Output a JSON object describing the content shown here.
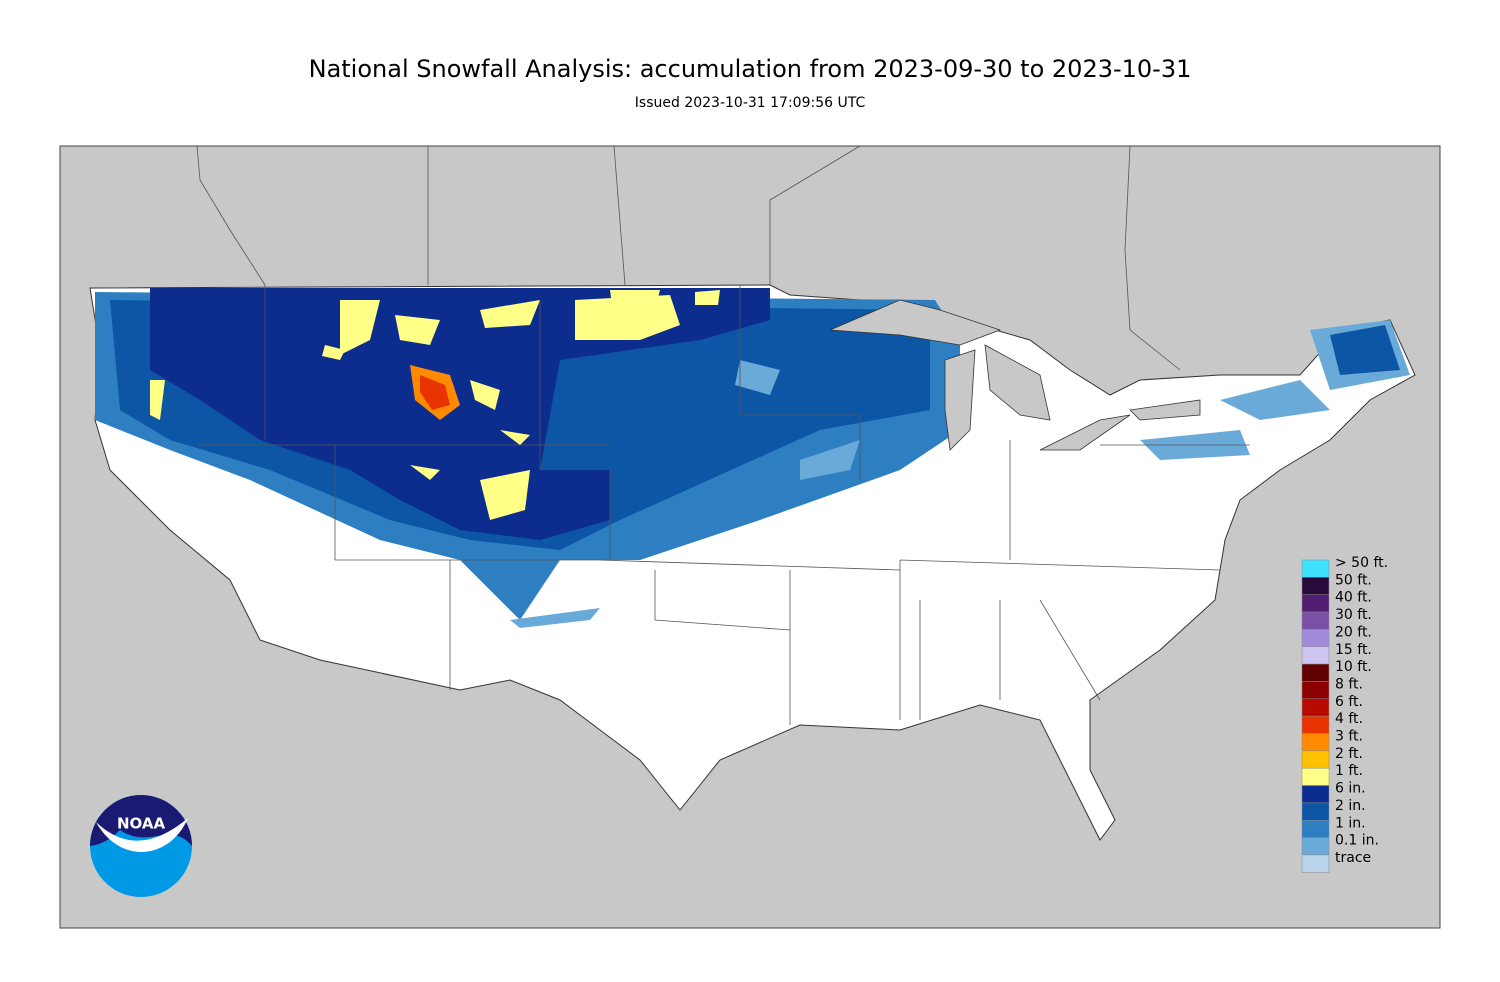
{
  "header": {
    "title": "National Snowfall Analysis: accumulation from 2023-09-30 to 2023-10-31",
    "subtitle": "Issued 2023-10-31 17:09:56 UTC"
  },
  "legend": {
    "items": [
      {
        "label": "> 50 ft.",
        "color": "#40e0ff"
      },
      {
        "label": "50 ft.",
        "color": "#2a0a3d"
      },
      {
        "label": "40 ft.",
        "color": "#521d70"
      },
      {
        "label": "30 ft.",
        "color": "#7a4fa6"
      },
      {
        "label": "20 ft.",
        "color": "#a08bd8"
      },
      {
        "label": "15 ft.",
        "color": "#cdc4f2"
      },
      {
        "label": "10 ft.",
        "color": "#610000"
      },
      {
        "label": "8 ft.",
        "color": "#8e0000"
      },
      {
        "label": "6 ft.",
        "color": "#b80a00"
      },
      {
        "label": "4 ft.",
        "color": "#e83400"
      },
      {
        "label": "3 ft.",
        "color": "#ff8a00"
      },
      {
        "label": "2 ft.",
        "color": "#ffc000"
      },
      {
        "label": "1 ft.",
        "color": "#ffff88"
      },
      {
        "label": "6 in.",
        "color": "#0c2c8e"
      },
      {
        "label": "2 in.",
        "color": "#0d55a5"
      },
      {
        "label": "1 in.",
        "color": "#2d7fc2"
      },
      {
        "label": "0.1 in.",
        "color": "#6aaad8"
      },
      {
        "label": "trace",
        "color": "#b9d3ea"
      }
    ]
  },
  "logo": {
    "text": "NOAA"
  }
}
